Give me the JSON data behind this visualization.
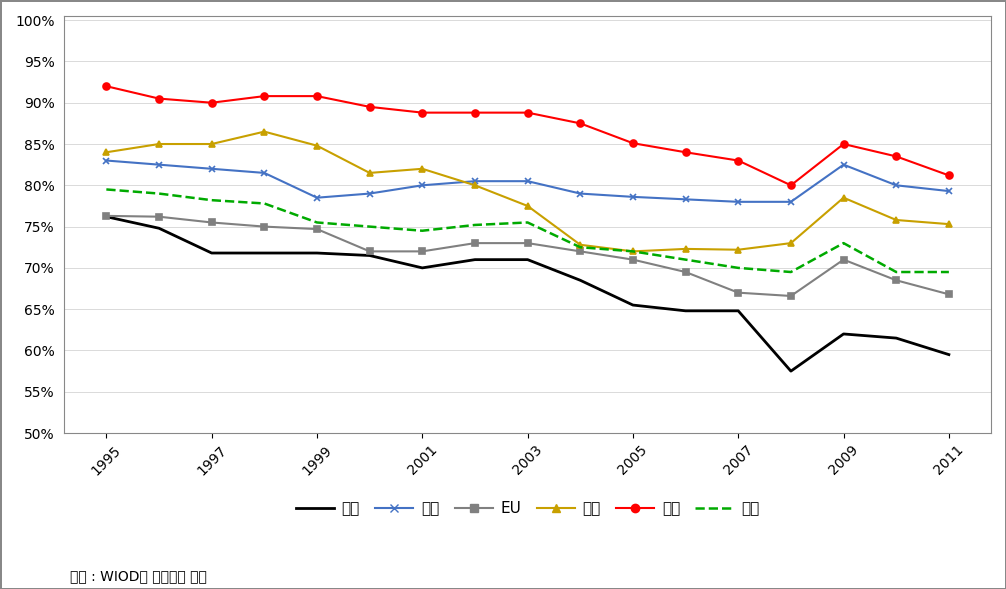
{
  "years": [
    1995,
    1996,
    1997,
    1998,
    1999,
    2000,
    2001,
    2002,
    2003,
    2004,
    2005,
    2006,
    2007,
    2008,
    2009,
    2010,
    2011
  ],
  "한국": [
    0.762,
    0.748,
    0.718,
    0.718,
    0.718,
    0.715,
    0.7,
    0.71,
    0.71,
    0.685,
    0.655,
    0.648,
    0.648,
    0.575,
    0.62,
    0.615,
    0.595
  ],
  "미국": [
    0.83,
    0.825,
    0.82,
    0.815,
    0.785,
    0.79,
    0.8,
    0.805,
    0.805,
    0.79,
    0.786,
    0.783,
    0.78,
    0.78,
    0.825,
    0.8,
    0.793
  ],
  "EU": [
    0.763,
    0.762,
    0.755,
    0.75,
    0.747,
    0.72,
    0.72,
    0.73,
    0.73,
    0.72,
    0.71,
    0.695,
    0.67,
    0.666,
    0.71,
    0.685,
    0.668
  ],
  "중국": [
    0.84,
    0.85,
    0.85,
    0.865,
    0.848,
    0.815,
    0.82,
    0.8,
    0.775,
    0.728,
    0.72,
    0.723,
    0.722,
    0.73,
    0.785,
    0.758,
    0.753
  ],
  "일본": [
    0.92,
    0.905,
    0.9,
    0.908,
    0.908,
    0.895,
    0.888,
    0.888,
    0.888,
    0.875,
    0.851,
    0.84,
    0.83,
    0.8,
    0.85,
    0.835,
    0.812
  ],
  "독일": [
    0.795,
    0.79,
    0.782,
    0.778,
    0.755,
    0.75,
    0.745,
    0.752,
    0.755,
    0.725,
    0.72,
    0.71,
    0.7,
    0.695,
    0.73,
    0.695,
    0.695
  ],
  "colors": {
    "한국": "#000000",
    "미국": "#4472c4",
    "EU": "#808080",
    "중국": "#c8a000",
    "일본": "#ff0000",
    "독일": "#00aa00"
  },
  "markers": {
    "한국": "None",
    "미국": "x",
    "EU": "s",
    "중국": "^",
    "일본": "o",
    "독일": "None"
  },
  "linestyles": {
    "한국": "-",
    "미국": "-",
    "EU": "-",
    "중국": "-",
    "일본": "-",
    "독일": "--"
  },
  "linewidths": {
    "한국": 2.0,
    "미국": 1.5,
    "EU": 1.5,
    "중국": 1.5,
    "일본": 1.5,
    "독일": 1.8
  },
  "ylim": [
    0.5,
    1.005
  ],
  "yticks": [
    0.5,
    0.55,
    0.6,
    0.65,
    0.7,
    0.75,
    0.8,
    0.85,
    0.9,
    0.95,
    1.0
  ],
  "xticks": [
    1995,
    1997,
    1999,
    2001,
    2003,
    2005,
    2007,
    2009,
    2011
  ],
  "legend_order": [
    "한국",
    "미국",
    "EU",
    "중국",
    "일본",
    "독일"
  ],
  "caption": "자료 : WIOD를 이용하여 작성",
  "background_color": "#ffffff"
}
